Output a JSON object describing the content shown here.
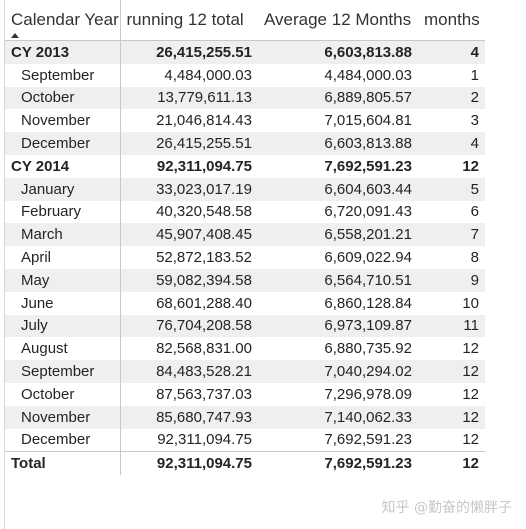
{
  "headers": {
    "calendar_year": "Calendar Year",
    "running_total": "running 12 total",
    "average": "Average 12 Months",
    "months": "months"
  },
  "rows": [
    {
      "type": "group",
      "label": "CY 2013",
      "running": "26,415,255.51",
      "average": "6,603,813.88",
      "months": "4"
    },
    {
      "type": "child",
      "label": "September",
      "running": "4,484,000.03",
      "average": "4,484,000.03",
      "months": "1"
    },
    {
      "type": "child",
      "label": "October",
      "running": "13,779,611.13",
      "average": "6,889,805.57",
      "months": "2"
    },
    {
      "type": "child",
      "label": "November",
      "running": "21,046,814.43",
      "average": "7,015,604.81",
      "months": "3"
    },
    {
      "type": "child",
      "label": "December",
      "running": "26,415,255.51",
      "average": "6,603,813.88",
      "months": "4"
    },
    {
      "type": "group",
      "label": "CY 2014",
      "running": "92,311,094.75",
      "average": "7,692,591.23",
      "months": "12"
    },
    {
      "type": "child",
      "label": "January",
      "running": "33,023,017.19",
      "average": "6,604,603.44",
      "months": "5"
    },
    {
      "type": "child",
      "label": "February",
      "running": "40,320,548.58",
      "average": "6,720,091.43",
      "months": "6"
    },
    {
      "type": "child",
      "label": "March",
      "running": "45,907,408.45",
      "average": "6,558,201.21",
      "months": "7"
    },
    {
      "type": "child",
      "label": "April",
      "running": "52,872,183.52",
      "average": "6,609,022.94",
      "months": "8"
    },
    {
      "type": "child",
      "label": "May",
      "running": "59,082,394.58",
      "average": "6,564,710.51",
      "months": "9"
    },
    {
      "type": "child",
      "label": "June",
      "running": "68,601,288.40",
      "average": "6,860,128.84",
      "months": "10"
    },
    {
      "type": "child",
      "label": "July",
      "running": "76,704,208.58",
      "average": "6,973,109.87",
      "months": "11"
    },
    {
      "type": "child",
      "label": "August",
      "running": "82,568,831.00",
      "average": "6,880,735.92",
      "months": "12"
    },
    {
      "type": "child",
      "label": "September",
      "running": "84,483,528.21",
      "average": "7,040,294.02",
      "months": "12"
    },
    {
      "type": "child",
      "label": "October",
      "running": "87,563,737.03",
      "average": "7,296,978.09",
      "months": "12"
    },
    {
      "type": "child",
      "label": "November",
      "running": "85,680,747.93",
      "average": "7,140,062.33",
      "months": "12"
    },
    {
      "type": "child",
      "label": "December",
      "running": "92,311,094.75",
      "average": "7,692,591.23",
      "months": "12"
    }
  ],
  "total": {
    "label": "Total",
    "running": "92,311,094.75",
    "average": "7,692,591.23",
    "months": "12"
  },
  "watermark": "知乎 @勤奋的懒胖子",
  "colors": {
    "shade": "#efefef",
    "grid": "#c8c8c8",
    "text": "#252423"
  },
  "icons": {
    "sort": "sort-ascending-icon"
  }
}
